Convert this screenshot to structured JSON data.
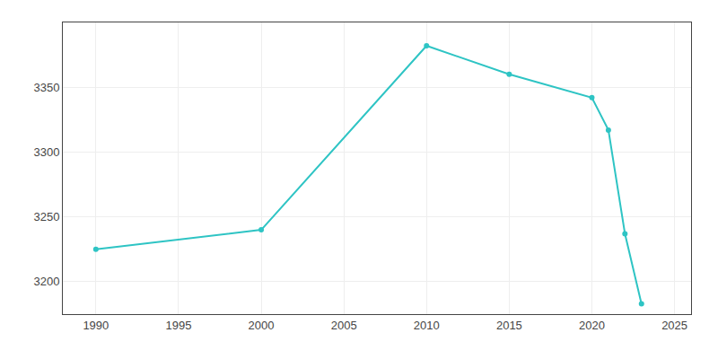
{
  "chart_data": {
    "type": "line",
    "x": [
      1990,
      2000,
      2010,
      2015,
      2020,
      2021,
      2022,
      2023
    ],
    "values": [
      3225,
      3240,
      3382,
      3360,
      3342,
      3317,
      3237,
      3183
    ],
    "color": "#2EC4C4",
    "marker": "circle",
    "line_style": "solid",
    "xlim": [
      1988,
      2026
    ],
    "ylim": [
      3175,
      3400
    ],
    "xticks": [
      1990,
      1995,
      2000,
      2005,
      2010,
      2015,
      2020,
      2025
    ],
    "yticks": [
      3200,
      3250,
      3300,
      3350
    ],
    "grid": true
  }
}
